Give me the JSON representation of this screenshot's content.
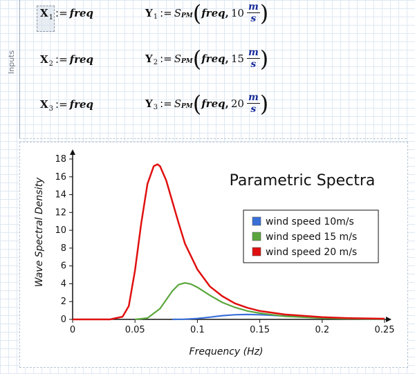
{
  "sidebar": {
    "label": "Inputs"
  },
  "equations": [
    {
      "lhs": "X",
      "lhs_sub": "1",
      "assign": ":=",
      "rhs": "freq"
    },
    {
      "lhs": "X",
      "lhs_sub": "2",
      "assign": ":=",
      "rhs": "freq"
    },
    {
      "lhs": "X",
      "lhs_sub": "3",
      "assign": ":=",
      "rhs": "freq"
    }
  ],
  "y_equations": [
    {
      "lhs": "Y",
      "lhs_sub": "1",
      "assign": ":=",
      "fn": "S",
      "fn_sub": "PM",
      "arg": "freq",
      "speed": "10",
      "unit_num": "m",
      "unit_den": "s"
    },
    {
      "lhs": "Y",
      "lhs_sub": "2",
      "assign": ":=",
      "fn": "S",
      "fn_sub": "PM",
      "arg": "freq",
      "speed": "15",
      "unit_num": "m",
      "unit_den": "s"
    },
    {
      "lhs": "Y",
      "lhs_sub": "3",
      "assign": ":=",
      "fn": "S",
      "fn_sub": "PM",
      "arg": "freq",
      "speed": "20",
      "unit_num": "m",
      "unit_den": "s"
    }
  ],
  "chart_data": {
    "type": "line",
    "title": "Parametric Spectra",
    "xlabel": "Frequency (Hz)",
    "ylabel": "Wave Spectral Density",
    "xlim": [
      0,
      0.25
    ],
    "ylim": [
      0,
      18
    ],
    "xticks": [
      "0",
      "0.05",
      "0.1",
      "0.15",
      "0.2",
      "0.25"
    ],
    "yticks": [
      "0",
      "2",
      "4",
      "6",
      "8",
      "10",
      "12",
      "14",
      "16",
      "18"
    ],
    "legend_position": "right",
    "grid": false,
    "series": [
      {
        "name": "wind speed 10m/s",
        "color": "#3a6fd8",
        "x": [
          0.08,
          0.09,
          0.1,
          0.11,
          0.12,
          0.13,
          0.14,
          0.15,
          0.16,
          0.17,
          0.18,
          0.2,
          0.22,
          0.25
        ],
        "y": [
          0,
          0.02,
          0.1,
          0.25,
          0.42,
          0.52,
          0.55,
          0.52,
          0.46,
          0.38,
          0.3,
          0.18,
          0.1,
          0.05
        ]
      },
      {
        "name": "wind speed 15 m/s",
        "color": "#5aa63c",
        "x": [
          0.05,
          0.06,
          0.07,
          0.08,
          0.085,
          0.09,
          0.095,
          0.1,
          0.11,
          0.12,
          0.13,
          0.14,
          0.15,
          0.17,
          0.2,
          0.22,
          0.25
        ],
        "y": [
          0,
          0.15,
          1.2,
          3.2,
          3.9,
          4.1,
          3.95,
          3.6,
          2.7,
          1.9,
          1.35,
          0.95,
          0.7,
          0.35,
          0.15,
          0.08,
          0.04
        ]
      },
      {
        "name": "wind speed 20 m/s",
        "color": "#e01010",
        "x": [
          0,
          0.03,
          0.04,
          0.045,
          0.05,
          0.055,
          0.06,
          0.065,
          0.068,
          0.07,
          0.075,
          0.08,
          0.085,
          0.09,
          0.1,
          0.11,
          0.12,
          0.13,
          0.14,
          0.15,
          0.17,
          0.2,
          0.22,
          0.25
        ],
        "y": [
          0,
          0,
          0.3,
          1.5,
          5.5,
          10.8,
          15.2,
          17.2,
          17.4,
          17.2,
          15.6,
          13.2,
          10.8,
          8.5,
          5.6,
          3.7,
          2.6,
          1.8,
          1.3,
          0.95,
          0.55,
          0.25,
          0.15,
          0.08
        ]
      }
    ]
  }
}
